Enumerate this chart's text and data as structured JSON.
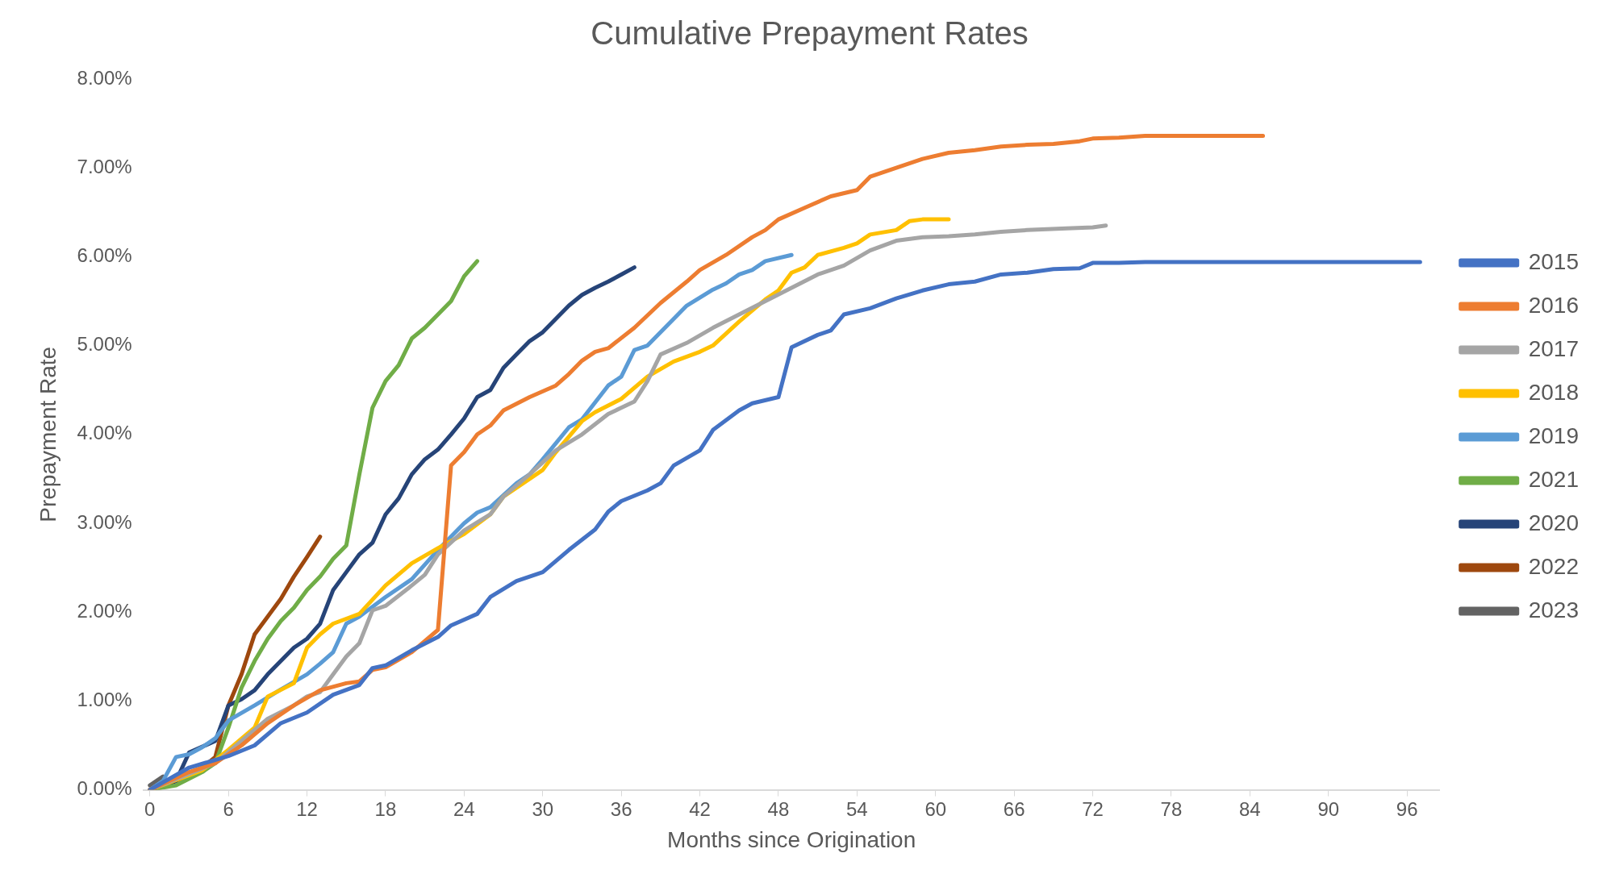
{
  "chart_data": {
    "type": "line",
    "title": "Cumulative Prepayment Rates",
    "xlabel": "Months since Origination",
    "ylabel": "Prepayment Rate",
    "xlim": [
      -0.5,
      98.5
    ],
    "xticks": [
      0,
      6,
      12,
      18,
      24,
      30,
      36,
      42,
      48,
      54,
      60,
      66,
      72,
      78,
      84,
      90,
      96
    ],
    "ylim": [
      0,
      8
    ],
    "yticks": [
      {
        "value": 0,
        "label": "0.00%"
      },
      {
        "value": 1,
        "label": "1.00%"
      },
      {
        "value": 2,
        "label": "2.00%"
      },
      {
        "value": 3,
        "label": "3.00%"
      },
      {
        "value": 4,
        "label": "4.00%"
      },
      {
        "value": 5,
        "label": "5.00%"
      },
      {
        "value": 6,
        "label": "6.00%"
      },
      {
        "value": 7,
        "label": "7.00%"
      },
      {
        "value": 8,
        "label": "8.00%"
      }
    ],
    "grid": false,
    "legend": "right",
    "marker": "none",
    "line_style": "solid",
    "series": [
      {
        "name": "2015",
        "color": "#4472c4",
        "x": [
          0,
          3,
          6,
          8,
          10,
          12,
          14,
          16,
          17,
          18,
          20,
          22,
          23,
          25,
          26,
          28,
          30,
          32,
          34,
          35,
          36,
          38,
          39,
          40,
          42,
          43,
          45,
          46,
          48,
          49,
          51,
          52,
          53,
          55,
          57,
          59,
          61,
          63,
          65,
          67,
          69,
          71,
          72,
          74,
          76,
          97
        ],
        "values": [
          0,
          0.25,
          0.38,
          0.5,
          0.75,
          0.87,
          1.07,
          1.18,
          1.37,
          1.4,
          1.57,
          1.72,
          1.85,
          1.98,
          2.17,
          2.35,
          2.45,
          2.7,
          2.93,
          3.13,
          3.25,
          3.37,
          3.45,
          3.65,
          3.82,
          4.05,
          4.27,
          4.35,
          4.42,
          4.98,
          5.12,
          5.17,
          5.35,
          5.42,
          5.53,
          5.62,
          5.69,
          5.72,
          5.8,
          5.82,
          5.86,
          5.87,
          5.93,
          5.93,
          5.94,
          5.94
        ]
      },
      {
        "name": "2016",
        "color": "#ed7d31",
        "x": [
          0,
          3,
          5,
          7,
          9,
          11,
          13,
          15,
          16,
          17,
          18,
          20,
          22,
          23,
          24,
          25,
          26,
          27,
          29,
          31,
          32,
          33,
          34,
          35,
          37,
          39,
          41,
          42,
          44,
          46,
          47,
          48,
          50,
          52,
          54,
          55,
          57,
          59,
          61,
          63,
          65,
          67,
          69,
          71,
          72,
          74,
          76,
          85
        ],
        "values": [
          0,
          0.2,
          0.3,
          0.5,
          0.75,
          0.95,
          1.12,
          1.2,
          1.22,
          1.35,
          1.38,
          1.55,
          1.8,
          3.65,
          3.8,
          4.0,
          4.1,
          4.27,
          4.42,
          4.55,
          4.68,
          4.83,
          4.93,
          4.97,
          5.2,
          5.48,
          5.72,
          5.85,
          6.02,
          6.22,
          6.3,
          6.42,
          6.55,
          6.68,
          6.75,
          6.9,
          7.0,
          7.1,
          7.17,
          7.2,
          7.24,
          7.26,
          7.27,
          7.3,
          7.33,
          7.34,
          7.36,
          7.36
        ]
      },
      {
        "name": "2017",
        "color": "#a5a5a5",
        "x": [
          0,
          5,
          7,
          9,
          11,
          12,
          13,
          14,
          15,
          16,
          17,
          18,
          20,
          21,
          22,
          24,
          26,
          27,
          29,
          31,
          33,
          35,
          37,
          38,
          39,
          41,
          43,
          45,
          47,
          49,
          51,
          53,
          55,
          57,
          59,
          61,
          63,
          65,
          67,
          70,
          72,
          73
        ],
        "values": [
          0,
          0.3,
          0.55,
          0.8,
          0.95,
          1.05,
          1.1,
          1.3,
          1.5,
          1.65,
          2.02,
          2.07,
          2.3,
          2.42,
          2.65,
          2.92,
          3.1,
          3.3,
          3.55,
          3.82,
          4.0,
          4.23,
          4.37,
          4.6,
          4.9,
          5.03,
          5.2,
          5.35,
          5.5,
          5.65,
          5.8,
          5.9,
          6.07,
          6.18,
          6.22,
          6.23,
          6.25,
          6.28,
          6.3,
          6.32,
          6.33,
          6.35
        ]
      },
      {
        "name": "2018",
        "color": "#ffc000",
        "x": [
          0,
          4,
          6,
          8,
          9,
          11,
          12,
          13,
          14,
          16,
          18,
          20,
          22,
          24,
          26,
          27,
          29,
          30,
          31,
          33,
          34,
          36,
          38,
          40,
          42,
          43,
          45,
          47,
          48,
          49,
          50,
          51,
          53,
          54,
          55,
          57,
          58,
          59,
          61
        ],
        "values": [
          0,
          0.22,
          0.45,
          0.7,
          1.05,
          1.2,
          1.6,
          1.75,
          1.87,
          1.98,
          2.3,
          2.55,
          2.72,
          2.88,
          3.1,
          3.3,
          3.5,
          3.6,
          3.8,
          4.15,
          4.25,
          4.4,
          4.65,
          4.82,
          4.93,
          5.0,
          5.27,
          5.52,
          5.62,
          5.82,
          5.88,
          6.02,
          6.1,
          6.15,
          6.25,
          6.3,
          6.4,
          6.42,
          6.42
        ]
      },
      {
        "name": "2019",
        "color": "#5b9bd5",
        "x": [
          0,
          1,
          2,
          3,
          4,
          5,
          6,
          8,
          10,
          12,
          13,
          14,
          15,
          16,
          18,
          20,
          22,
          24,
          25,
          26,
          28,
          29,
          30,
          32,
          33,
          35,
          36,
          37,
          38,
          40,
          41,
          43,
          44,
          45,
          46,
          47,
          49
        ],
        "values": [
          0,
          0.1,
          0.37,
          0.4,
          0.48,
          0.58,
          0.78,
          0.95,
          1.13,
          1.3,
          1.42,
          1.55,
          1.87,
          1.95,
          2.17,
          2.37,
          2.7,
          3.0,
          3.12,
          3.18,
          3.45,
          3.55,
          3.72,
          4.08,
          4.17,
          4.55,
          4.65,
          4.95,
          5.0,
          5.3,
          5.45,
          5.63,
          5.7,
          5.8,
          5.85,
          5.95,
          6.02
        ]
      },
      {
        "name": "2021",
        "color": "#70ad47",
        "x": [
          0,
          2,
          4,
          5,
          6,
          7,
          8,
          9,
          10,
          11,
          12,
          13,
          14,
          15,
          16,
          17,
          18,
          19,
          20,
          21,
          22,
          23,
          24,
          25
        ],
        "values": [
          0,
          0.05,
          0.2,
          0.3,
          0.7,
          1.15,
          1.45,
          1.7,
          1.9,
          2.05,
          2.25,
          2.4,
          2.6,
          2.75,
          3.55,
          4.3,
          4.6,
          4.78,
          5.08,
          5.2,
          5.35,
          5.5,
          5.78,
          5.95
        ]
      },
      {
        "name": "2020",
        "color": "#264478",
        "x": [
          0,
          2,
          3,
          5,
          6,
          7,
          8,
          9,
          10,
          11,
          12,
          13,
          14,
          15,
          16,
          17,
          18,
          19,
          20,
          21,
          22,
          23,
          24,
          25,
          26,
          27,
          28,
          29,
          30,
          31,
          32,
          33,
          34,
          35,
          36,
          37
        ],
        "values": [
          0,
          0.1,
          0.42,
          0.55,
          0.95,
          1.02,
          1.12,
          1.3,
          1.45,
          1.6,
          1.7,
          1.87,
          2.25,
          2.45,
          2.65,
          2.78,
          3.1,
          3.28,
          3.55,
          3.72,
          3.83,
          4.0,
          4.18,
          4.42,
          4.5,
          4.75,
          4.9,
          5.05,
          5.15,
          5.3,
          5.45,
          5.57,
          5.65,
          5.72,
          5.8,
          5.88
        ]
      },
      {
        "name": "2022",
        "color": "#9e480e",
        "x": [
          0,
          1,
          2,
          3,
          4,
          5,
          6,
          7,
          8,
          9,
          10,
          11,
          12,
          13
        ],
        "values": [
          0,
          0.03,
          0.1,
          0.17,
          0.25,
          0.37,
          0.95,
          1.3,
          1.75,
          1.95,
          2.15,
          2.4,
          2.62,
          2.85
        ]
      },
      {
        "name": "2023",
        "color": "#636363",
        "x": [
          0,
          1
        ],
        "values": [
          0.05,
          0.15
        ]
      }
    ]
  }
}
